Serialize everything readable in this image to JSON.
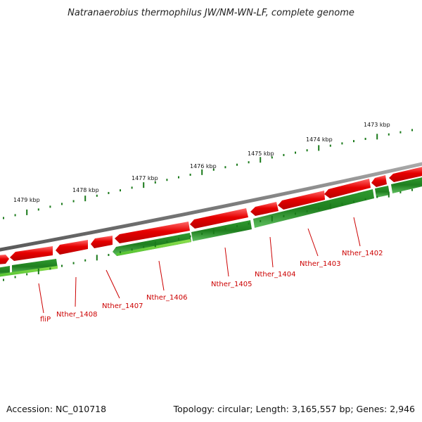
{
  "title": "Natranaerobius thermophilus JW/NM-WN-LF, complete genome",
  "accession": "Accession: NC_010718",
  "summary": "Topology: circular; Length: 3,165,557 bp; Genes: 2,946",
  "ruler_labels": [
    "1473 kbp",
    "1474 kbp",
    "1475 kbp",
    "1476 kbp",
    "1477 kbp",
    "1478 kbp",
    "1479 kbp"
  ],
  "gene_labels": [
    "fliP",
    "Nther_1408",
    "Nther_1407",
    "Nther_1406",
    "Nther_1405",
    "Nther_1404",
    "Nther_1403",
    "Nther_1402"
  ],
  "colors": {
    "backbone": "#7a7a7a",
    "forward_gene": "#e00000",
    "reverse_gene": "#1e8a1e",
    "reverse_gene_light": "#66cc33",
    "ticks": "#1a7a1a",
    "label": "#cc0000"
  }
}
